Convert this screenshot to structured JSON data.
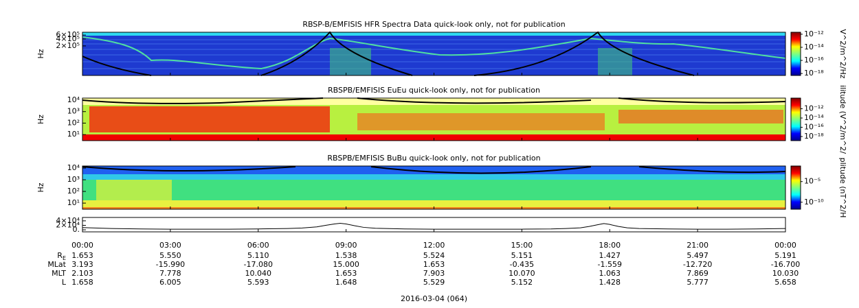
{
  "chart_data": [
    {
      "type": "spectrogram",
      "title": "RBSP-B/EMFISIS  HFR Spectra Data quick-look only, not for publication",
      "ylabel": "Hz",
      "ylog": true,
      "ylim": [
        10000,
        800000
      ],
      "yticks": [
        {
          "value": 600000,
          "label": "6×10⁵"
        },
        {
          "value": 400000,
          "label": "4×10⁵"
        },
        {
          "value": 200000,
          "label": "2×10⁵"
        }
      ],
      "colorbar": {
        "label": "V^2/m^2/Hz",
        "colormap": "jet",
        "log": true,
        "lim": [
          5e-19,
          2e-12
        ],
        "ticks": [
          {
            "value": 1e-12,
            "label": "10⁻¹²"
          },
          {
            "value": 1e-14,
            "label": "10⁻¹⁴"
          },
          {
            "value": 1e-16,
            "label": "10⁻¹⁶"
          },
          {
            "value": 1e-18,
            "label": "10⁻¹⁸"
          }
        ]
      }
    },
    {
      "type": "spectrogram",
      "title": "RBSPB/EMFISIS  EuEu quick-look only, not for publication",
      "ylabel": "Hz",
      "ylog": true,
      "ylim": [
        3,
        15000
      ],
      "yticks": [
        {
          "value": 10000,
          "label": "10⁴"
        },
        {
          "value": 1000,
          "label": "10³"
        },
        {
          "value": 100,
          "label": "10²"
        },
        {
          "value": 10,
          "label": "10¹"
        }
      ],
      "colorbar": {
        "label": "ilitude (V^2/m^2/",
        "colormap": "jet",
        "log": true,
        "lim": [
          1.3e-19,
          2e-10
        ],
        "ticks": [
          {
            "value": 1e-12,
            "label": "10⁻¹²"
          },
          {
            "value": 1e-14,
            "label": "10⁻¹⁴"
          },
          {
            "value": 1e-16,
            "label": "10⁻¹⁶"
          },
          {
            "value": 1e-18,
            "label": "10⁻¹⁸"
          }
        ]
      }
    },
    {
      "type": "spectrogram",
      "title": "RBSPB/EMFISIS  BuBu quick-look only, not for publication",
      "ylabel": "Hz",
      "ylog": true,
      "ylim": [
        3,
        15000
      ],
      "yticks": [
        {
          "value": 10000,
          "label": "10⁴"
        },
        {
          "value": 1000,
          "label": "10³"
        },
        {
          "value": 100,
          "label": "10²"
        },
        {
          "value": 10,
          "label": "10¹"
        }
      ],
      "colorbar": {
        "label": "plitude (nT^2/H",
        "colormap": "jet",
        "log": true,
        "lim": [
          2e-12,
          0.06
        ],
        "ticks": [
          {
            "value": 1e-05,
            "label": "10⁻⁵"
          },
          {
            "value": 1e-10,
            "label": "10⁻¹⁰"
          }
        ]
      }
    },
    {
      "type": "line",
      "color": "#000000",
      "ylim": [
        -9000,
        55000
      ],
      "yticks": [
        {
          "value": 40000,
          "label": "4×10⁴"
        },
        {
          "value": 20000,
          "label": "2×10⁴"
        },
        {
          "value": 0,
          "label": "0."
        }
      ],
      "x": [
        0,
        1,
        2,
        3,
        4,
        5,
        6,
        7,
        7.5,
        8,
        8.3,
        8.6,
        8.8,
        9,
        9.3,
        9.6,
        10,
        11,
        12,
        13,
        14,
        15,
        16,
        16.5,
        17,
        17.3,
        17.6,
        17.8,
        18,
        18.3,
        18.6,
        19,
        20,
        21,
        22,
        23,
        24
      ],
      "values": [
        10000,
        6000,
        4000,
        3000,
        3000,
        3000,
        4000,
        6000,
        8000,
        13000,
        20000,
        26000,
        29000,
        26000,
        18000,
        11000,
        7000,
        4000,
        3000,
        3000,
        3000,
        3000,
        4000,
        6000,
        9000,
        15000,
        23000,
        28000,
        24000,
        15000,
        9000,
        6000,
        4000,
        3000,
        3000,
        4000,
        6000
      ]
    }
  ],
  "x_axis": {
    "xlim": [
      0,
      24
    ],
    "xticks": [
      {
        "value": 0,
        "label": "00:00"
      },
      {
        "value": 3,
        "label": "03:00"
      },
      {
        "value": 6,
        "label": "06:00"
      },
      {
        "value": 9,
        "label": "09:00"
      },
      {
        "value": 12,
        "label": "12:00"
      },
      {
        "value": 15,
        "label": "15:00"
      },
      {
        "value": 18,
        "label": "18:00"
      },
      {
        "value": 21,
        "label": "21:00"
      },
      {
        "value": 24,
        "label": "00:00"
      }
    ]
  },
  "ephemeris": {
    "rows": [
      {
        "label": "R",
        "subscript": "E",
        "values": [
          "1.653",
          "5.550",
          "5.110",
          "1.538",
          "5.524",
          "5.151",
          "1.427",
          "5.497",
          "5.191"
        ]
      },
      {
        "label": "MLat",
        "values": [
          "3.193",
          "-15.990",
          "-17.080",
          "15.000",
          "1.653",
          "-0.435",
          "-1.559",
          "-12.720",
          "-16.700"
        ]
      },
      {
        "label": "MLT",
        "values": [
          "2.103",
          "7.778",
          "10.040",
          "1.653",
          "7.903",
          "10.070",
          "1.063",
          "7.869",
          "10.030"
        ]
      },
      {
        "label": "L",
        "values": [
          "1.658",
          "6.005",
          "5.593",
          "1.648",
          "5.529",
          "5.152",
          "1.428",
          "5.777",
          "5.658"
        ]
      }
    ]
  },
  "date": "2016-03-04 (064)"
}
